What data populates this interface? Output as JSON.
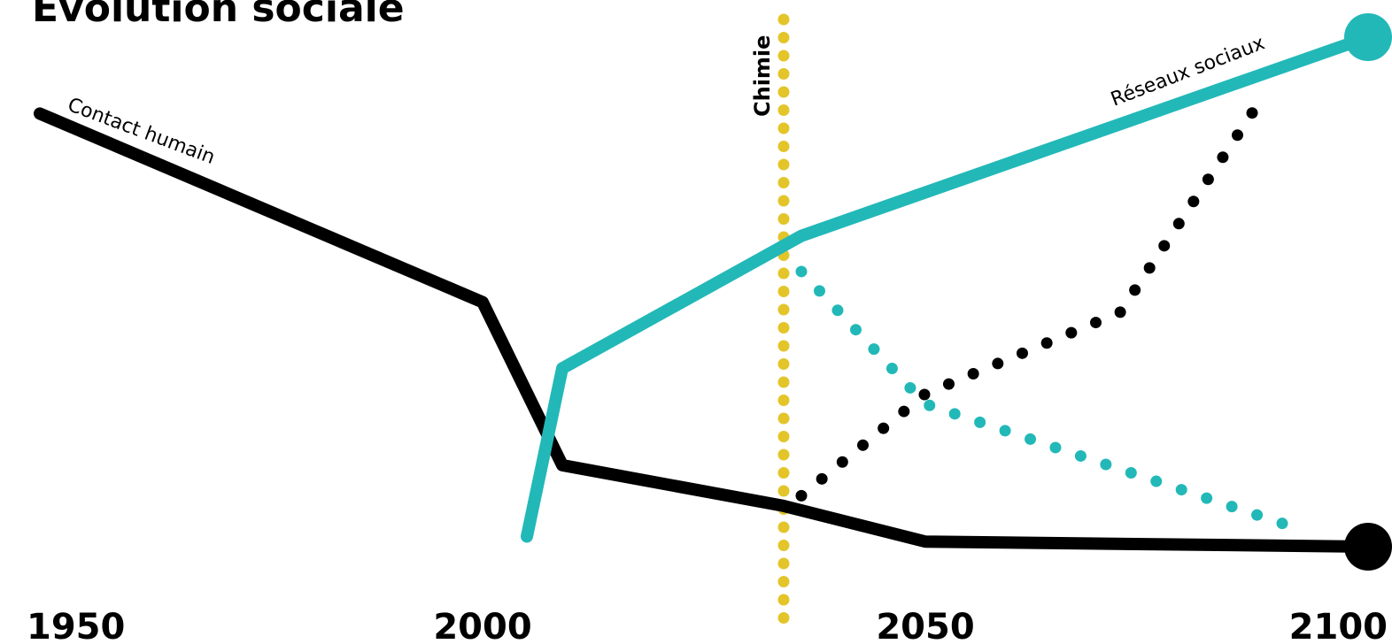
{
  "chart_data": {
    "type": "line",
    "title": "Evolution sociale",
    "x_ticks": [
      1950,
      2000,
      2050,
      2100
    ],
    "xlim": [
      1950,
      2100
    ],
    "ylim": [
      0,
      100
    ],
    "y_axis_shown": false,
    "grid": false,
    "legend": "none",
    "vertical_marker": {
      "label": "Chimie",
      "x": 2034,
      "color": "#e3c52a",
      "style": "dotted"
    },
    "series": [
      {
        "name": "Contact humain",
        "color": "#000000",
        "style": "solid",
        "end_marker": true,
        "points": [
          [
            1950,
            85
          ],
          [
            2000,
            48
          ],
          [
            2009,
            16
          ],
          [
            2034,
            8
          ],
          [
            2050,
            1
          ],
          [
            2100,
            0
          ]
        ]
      },
      {
        "name": "Réseaux sociaux",
        "color": "#22b8b8",
        "style": "solid",
        "end_marker": true,
        "points": [
          [
            2005,
            2
          ],
          [
            2009,
            35
          ],
          [
            2036,
            61
          ],
          [
            2100,
            100
          ]
        ]
      },
      {
        "color": "#22b8b8",
        "style": "dotted",
        "points": [
          [
            2036,
            54
          ],
          [
            2050,
            28
          ],
          [
            2093,
            3
          ]
        ]
      },
      {
        "color": "#000000",
        "style": "dotted",
        "points": [
          [
            2036,
            10
          ],
          [
            2050,
            30
          ],
          [
            2072,
            46
          ],
          [
            2088,
            88
          ]
        ]
      }
    ]
  }
}
